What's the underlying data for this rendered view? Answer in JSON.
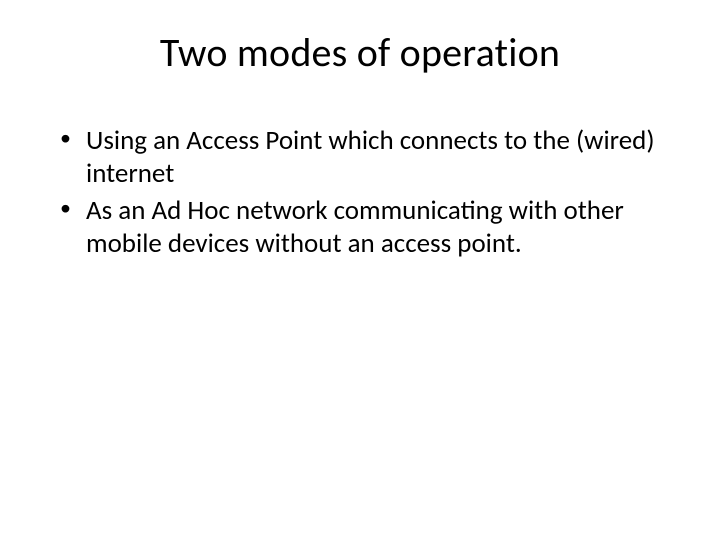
{
  "slide": {
    "title": "Two modes of operation",
    "bullets": [
      "Using an Access Point which connects to the (wired) internet",
      "As an Ad Hoc network communicating with other mobile devices without an access point."
    ],
    "title_fontsize": 40,
    "body_fontsize": 27,
    "text_color": "#000000",
    "background_color": "#ffffff"
  }
}
